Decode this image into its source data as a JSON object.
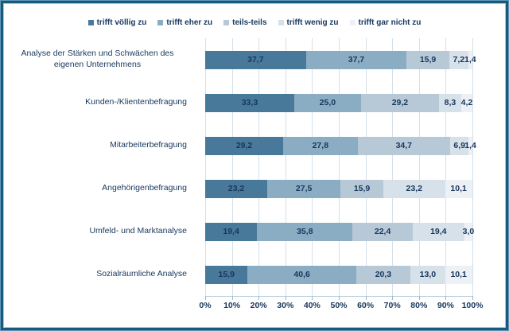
{
  "chart_data": {
    "type": "bar",
    "orientation": "horizontal",
    "stacked": true,
    "grid": true,
    "legend_position": "top",
    "series_names": [
      "trifft völlig zu",
      "trifft eher zu",
      "teils-teils",
      "trifft wenig zu",
      "trifft gar nicht zu"
    ],
    "series_colors": [
      "#49799a",
      "#8badc3",
      "#b7c9d7",
      "#d7e1e9",
      "#edf1f5"
    ],
    "categories": [
      "Analyse der Stärken und Schwächen des eigenen Unternehmens",
      "Kunden-/Klientenbefragung",
      "Mitarbeiterbefragung",
      "Angehörigenbefragung",
      "Umfeld- und Marktanalyse",
      "Sozialräumliche Analyse"
    ],
    "rows": [
      {
        "category": "Analyse der Stärken und Schwächen des eigenen Unternehmens",
        "values": [
          37.7,
          37.7,
          15.9,
          7.2,
          1.4
        ],
        "labels": [
          "37,7",
          "37,7",
          "15,9",
          "7,2",
          "1,4"
        ]
      },
      {
        "category": "Kunden-/Klientenbefragung",
        "values": [
          33.3,
          25.0,
          29.2,
          8.3,
          4.2
        ],
        "labels": [
          "33,3",
          "25,0",
          "29,2",
          "8,3",
          "4,2"
        ]
      },
      {
        "category": "Mitarbeiterbefragung",
        "values": [
          29.2,
          27.8,
          34.7,
          6.9,
          1.4
        ],
        "labels": [
          "29,2",
          "27,8",
          "34,7",
          "6,9",
          "1,4"
        ]
      },
      {
        "category": "Angehörigenbefragung",
        "values": [
          23.2,
          27.5,
          15.9,
          23.2,
          10.1
        ],
        "labels": [
          "23,2",
          "27,5",
          "15,9",
          "23,2",
          "10,1"
        ]
      },
      {
        "category": "Umfeld- und Marktanalyse",
        "values": [
          19.4,
          35.8,
          22.4,
          19.4,
          3.0
        ],
        "labels": [
          "19,4",
          "35,8",
          "22,4",
          "19,4",
          "3,0"
        ]
      },
      {
        "category": "Sozialräumliche Analyse",
        "values": [
          15.9,
          40.6,
          20.3,
          13.0,
          10.1
        ],
        "labels": [
          "15,9",
          "40,6",
          "20,3",
          "13,0",
          "10,1"
        ]
      }
    ],
    "x_axis": {
      "min": 0,
      "max": 100,
      "tick_labels": [
        "0%",
        "10%",
        "20%",
        "30%",
        "40%",
        "50%",
        "60%",
        "70%",
        "80%",
        "90%",
        "100%"
      ]
    }
  }
}
